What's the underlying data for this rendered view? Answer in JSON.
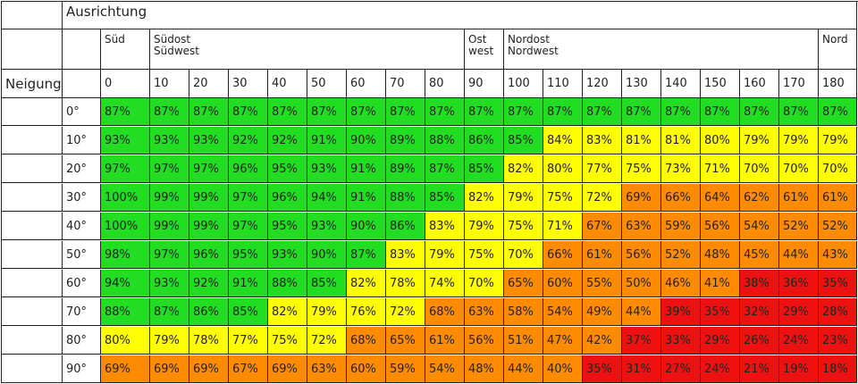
{
  "colors": {
    "green": "#22dd22",
    "yellow": "#ffff00",
    "orange": "#ff8c00",
    "red": "#ee1111"
  },
  "chart_data": {
    "type": "heatmap",
    "header_title": "Ausrichtung",
    "row_axis_label": "Neigung",
    "direction_groups": [
      {
        "lines": [
          "Süd"
        ],
        "span": 1
      },
      {
        "lines": [
          "Südost",
          "Südwest"
        ],
        "span": 8
      },
      {
        "lines": [
          "Ost",
          "west"
        ],
        "span": 1
      },
      {
        "lines": [
          "Nordost",
          "Nordwest"
        ],
        "span": 8
      },
      {
        "lines": [
          "Nord"
        ],
        "span": 1
      }
    ],
    "columns": [
      "0",
      "10",
      "20",
      "30",
      "40",
      "50",
      "60",
      "70",
      "80",
      "90",
      "100",
      "110",
      "120",
      "130",
      "140",
      "150",
      "160",
      "170",
      "180"
    ],
    "rows": [
      "0°",
      "10°",
      "20°",
      "30°",
      "40°",
      "50°",
      "60°",
      "70°",
      "80°",
      "90°"
    ],
    "values": [
      [
        87,
        87,
        87,
        87,
        87,
        87,
        87,
        87,
        87,
        87,
        87,
        87,
        87,
        87,
        87,
        87,
        87,
        87,
        87
      ],
      [
        93,
        93,
        93,
        92,
        92,
        91,
        90,
        89,
        88,
        86,
        85,
        84,
        83,
        81,
        81,
        80,
        79,
        79,
        79
      ],
      [
        97,
        97,
        97,
        96,
        95,
        93,
        91,
        89,
        87,
        85,
        82,
        80,
        77,
        75,
        73,
        71,
        70,
        70,
        70
      ],
      [
        100,
        99,
        99,
        97,
        96,
        94,
        91,
        88,
        85,
        82,
        79,
        75,
        72,
        69,
        66,
        64,
        62,
        61,
        61
      ],
      [
        100,
        99,
        99,
        97,
        95,
        93,
        90,
        86,
        83,
        79,
        75,
        71,
        67,
        63,
        59,
        56,
        54,
        52,
        52
      ],
      [
        98,
        97,
        96,
        95,
        93,
        90,
        87,
        83,
        79,
        75,
        70,
        66,
        61,
        56,
        52,
        48,
        45,
        44,
        43
      ],
      [
        94,
        93,
        92,
        91,
        88,
        85,
        82,
        78,
        74,
        70,
        65,
        60,
        55,
        50,
        46,
        41,
        38,
        36,
        35
      ],
      [
        88,
        87,
        86,
        85,
        82,
        79,
        76,
        72,
        68,
        63,
        58,
        54,
        49,
        44,
        39,
        35,
        32,
        29,
        28
      ],
      [
        80,
        79,
        78,
        77,
        75,
        72,
        68,
        65,
        61,
        56,
        51,
        47,
        42,
        37,
        33,
        29,
        26,
        24,
        23
      ],
      [
        69,
        69,
        69,
        67,
        69,
        63,
        60,
        59,
        54,
        48,
        44,
        40,
        35,
        31,
        27,
        24,
        21,
        19,
        18
      ]
    ],
    "colormap": [
      {
        "min": 85,
        "color": "green"
      },
      {
        "min": 70,
        "color": "yellow"
      },
      {
        "min": 40,
        "color": "orange"
      },
      {
        "min": 0,
        "color": "red"
      }
    ],
    "value_suffix": "%"
  }
}
